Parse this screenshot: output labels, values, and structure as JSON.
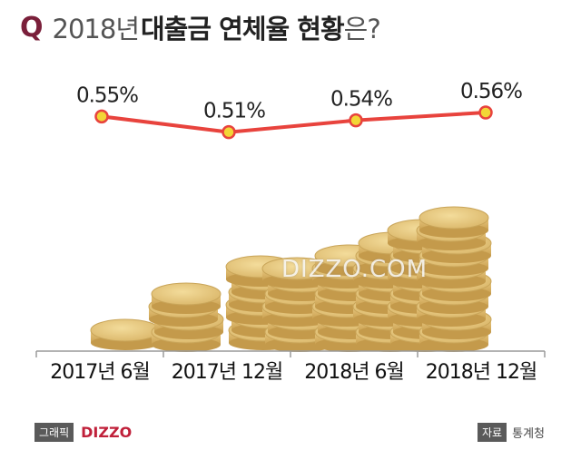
{
  "header": {
    "q_mark": "Q",
    "year": "2018년",
    "subject": "대출금 연체율 현황",
    "question_suffix": "은?"
  },
  "watermark": "DIZZO.COM",
  "footer": {
    "graphic_label": "그래픽",
    "brand": "DIZZO",
    "source_label": "자료",
    "source_value": "통계청"
  },
  "colors": {
    "line": "#e8433d",
    "marker_fill": "#f2d636",
    "title_q": "#7a1f3a",
    "coin": "#d9b569",
    "brand": "#c0203a"
  },
  "chart_data": {
    "type": "line",
    "categories": [
      "2017년 6월",
      "2017년 12월",
      "2018년 6월",
      "2018년 12월"
    ],
    "values": [
      0.55,
      0.51,
      0.54,
      0.56
    ],
    "value_labels": [
      "0.55%",
      "0.51%",
      "0.54%",
      "0.56%"
    ],
    "unit": "%",
    "title": "2018년 대출금 연체율 현황은?",
    "coin_stack_heights": [
      1,
      2,
      3,
      4
    ]
  }
}
